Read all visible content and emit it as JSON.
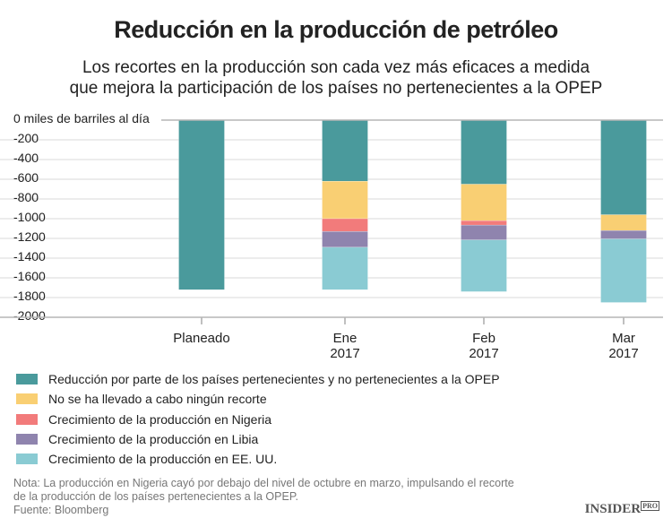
{
  "chart_data": {
    "type": "bar",
    "stacked": true,
    "title": "Reducción en la producción de petróleo",
    "subtitle": [
      "Los recortes en la producción son cada vez más eficaces a medida",
      "que mejora la participación de los países no pertenecientes a la OPEP"
    ],
    "ylabel": "miles de barriles al día",
    "ylim": [
      -2000,
      0
    ],
    "yticks": [
      0,
      -200,
      -400,
      -600,
      -800,
      -1000,
      -1200,
      -1400,
      -1600,
      -1800,
      -2000
    ],
    "ytick_labels": [
      "0 miles de barriles al día",
      "-200",
      "-400",
      "-600",
      "-800",
      "-1000",
      "-1200",
      "-1400",
      "-1600",
      "-1800",
      "-2000"
    ],
    "grid": true,
    "categories": [
      "Planeado",
      "Ene\n2017",
      "Feb\n2017",
      "Mar\n2017"
    ],
    "category_labels": [
      [
        "Planeado"
      ],
      [
        "Ene",
        "2017"
      ],
      [
        "Feb",
        "2017"
      ],
      [
        "Mar",
        "2017"
      ]
    ],
    "legend_position": "bottom",
    "series": [
      {
        "name": "Reducción por parte de los países pertenecientes y no pertenecientes a la OPEP",
        "color": "#4a9a9c",
        "values": [
          -1720,
          -620,
          -650,
          -960
        ]
      },
      {
        "name": "No se ha llevado a cabo ningún recorte",
        "color": "#f9cf73",
        "values": [
          0,
          -380,
          -370,
          -160
        ]
      },
      {
        "name": "Crecimiento de la producción en Nigeria",
        "color": "#f27b7b",
        "values": [
          0,
          -130,
          -45,
          0
        ]
      },
      {
        "name": "Crecimiento de la producción en Libia",
        "color": "#8f84ae",
        "values": [
          0,
          -160,
          -150,
          -85
        ]
      },
      {
        "name": "Crecimiento de la producción en EE. UU.",
        "color": "#8acbd3",
        "values": [
          0,
          -430,
          -525,
          -645
        ]
      }
    ]
  },
  "footer": {
    "note_lines": [
      "Nota: La producción en Nigeria cayó por debajo del nivel de octubre en marzo, impulsando el recorte",
      "de la producción de los países pertenecientes a la OPEP."
    ],
    "source": "Fuente: Bloomberg",
    "logo": "INSIDER PRO"
  }
}
